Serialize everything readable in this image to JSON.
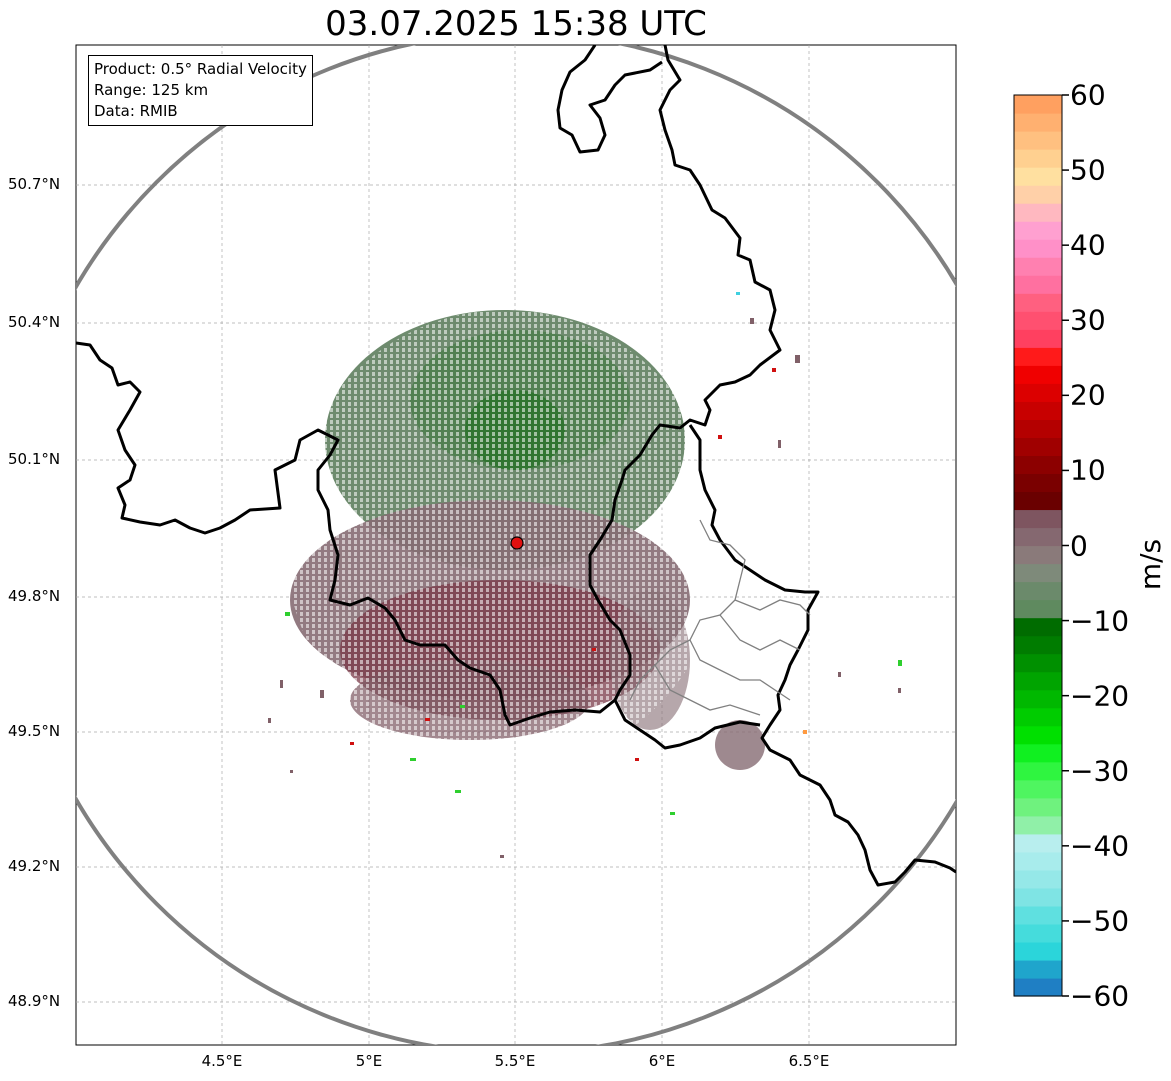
{
  "title": "03.07.2025 15:38 UTC",
  "info": {
    "product": "Product: 0.5° Radial Velocity",
    "range": "Range: 125 km",
    "data": "Data: RMIB"
  },
  "lat_labels": [
    "50.7°N",
    "50.4°N",
    "50.1°N",
    "49.8°N",
    "49.5°N",
    "49.2°N",
    "48.9°N"
  ],
  "lon_labels": [
    "4.5°E",
    "5°E",
    "5.5°E",
    "6°E",
    "6.5°E"
  ],
  "colorbar": {
    "unit": "m/s",
    "ticks": [
      "60",
      "50",
      "40",
      "30",
      "20",
      "10",
      "0",
      "−10",
      "−20",
      "−30",
      "−40",
      "−50",
      "−60"
    ],
    "range": [
      -60,
      60
    ],
    "colors": [
      "#1f7fc4",
      "#1fa5cc",
      "#2bd5da",
      "#45dcdc",
      "#5fe0e0",
      "#7fe4e4",
      "#95e8e8",
      "#a8ecec",
      "#b8eeee",
      "#90f0a8",
      "#6ff27e",
      "#4ff560",
      "#2ff540",
      "#10f020",
      "#00e000",
      "#00cc00",
      "#00b800",
      "#00a400",
      "#009000",
      "#007c00",
      "#006c00",
      "#5f8a5f",
      "#6b8a6b",
      "#7e8a7a",
      "#8a7a7a",
      "#856870",
      "#7e5560",
      "#6a0000",
      "#7a0000",
      "#8c0000",
      "#a00000",
      "#b40000",
      "#c80000",
      "#dc0000",
      "#f00000",
      "#ff1a1a",
      "#ff4060",
      "#ff5070",
      "#ff6080",
      "#ff70a0",
      "#ff80b0",
      "#ff90c8",
      "#ffa0d0",
      "#ffb8c0",
      "#ffd0a8",
      "#ffe0a0",
      "#ffd090",
      "#ffc080",
      "#ffb070",
      "#ffa060"
    ]
  },
  "radar_site": {
    "lon": 5.505,
    "lat": 49.914
  },
  "map_extent": {
    "lon": [
      4.0,
      7.0
    ],
    "lat": [
      48.8,
      51.0
    ]
  }
}
